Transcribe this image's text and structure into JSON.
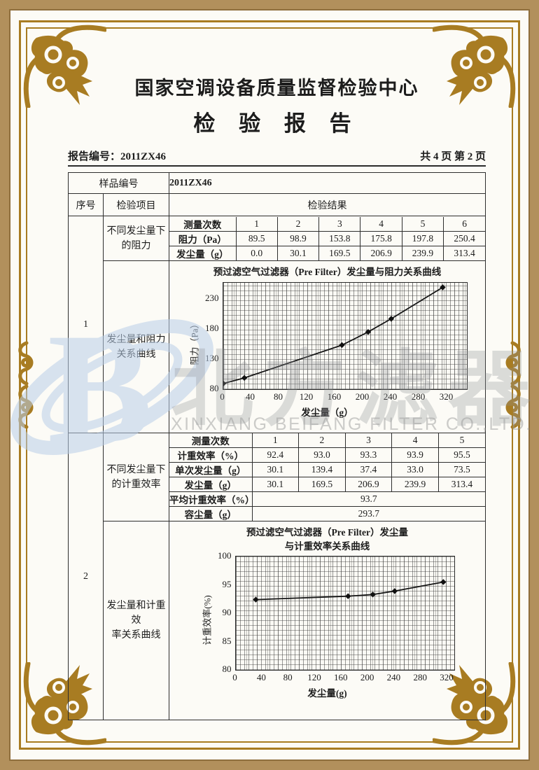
{
  "page": {
    "org_title": "国家空调设备质量监督检验中心",
    "report_title": "检 验 报 告",
    "report_no": "报告编号：2011ZX46",
    "page_info": "共 4 页 第 2 页"
  },
  "table": {
    "sample_no_label": "样品编号",
    "sample_no_value": "2011ZX46",
    "seq_header": "序号",
    "item_header": "检验项目",
    "result_header": "检验结果",
    "row1": {
      "seq": "1",
      "item_a": "不同发尘量下\n的阻力",
      "item_b": "发尘量和阻力\n关系曲线"
    },
    "row2": {
      "seq": "2",
      "item_a": "不同发尘量下\n的计重效率",
      "item_b": "发尘量和计重效\n率关系曲线"
    }
  },
  "resistance_table": {
    "count_label": "测量次数",
    "counts": [
      "1",
      "2",
      "3",
      "4",
      "5",
      "6"
    ],
    "rows": [
      {
        "label": "阻力（Pa）",
        "values": [
          "89.5",
          "98.9",
          "153.8",
          "175.8",
          "197.8",
          "250.4"
        ]
      },
      {
        "label": "发尘量（g）",
        "values": [
          "0.0",
          "30.1",
          "169.5",
          "206.9",
          "239.9",
          "313.4"
        ]
      }
    ]
  },
  "efficiency_table": {
    "count_label": "测量次数",
    "counts": [
      "1",
      "2",
      "3",
      "4",
      "5"
    ],
    "rows": [
      {
        "label": "计重效率（%）",
        "values": [
          "92.4",
          "93.0",
          "93.3",
          "93.9",
          "95.5"
        ]
      },
      {
        "label": "单次发尘量（g）",
        "values": [
          "30.1",
          "139.4",
          "37.4",
          "33.0",
          "73.5"
        ]
      },
      {
        "label": "发尘量（g）",
        "values": [
          "30.1",
          "169.5",
          "206.9",
          "239.9",
          "313.4"
        ]
      }
    ],
    "avg_label": "平均计重效率（%）",
    "avg_value": "93.7",
    "capacity_label": "容尘量（g）",
    "capacity_value": "293.7"
  },
  "chart_data": [
    {
      "type": "line",
      "title": "预过滤空气过滤器（Pre Filter）发尘量与阻力关系曲线",
      "xlabel": "发尘量（g）",
      "ylabel": "阻力（Pa）",
      "x": [
        0,
        30.1,
        169.5,
        206.9,
        239.9,
        313.4
      ],
      "y": [
        89.5,
        98.9,
        153.8,
        175.8,
        197.8,
        250.4
      ],
      "xlim": [
        0,
        348
      ],
      "ylim": [
        80,
        258
      ],
      "xticks": [
        0,
        40,
        80,
        120,
        160,
        200,
        240,
        280,
        320
      ],
      "yticks": [
        80,
        130,
        180,
        230
      ],
      "grid": true,
      "legend": "none",
      "marker": "diamond"
    },
    {
      "type": "line",
      "title": "预过滤空气过滤器（Pre Filter）发尘量\n与计重效率关系曲线",
      "xlabel": "发尘量(g)",
      "ylabel": "计重效率(%)",
      "x": [
        30.1,
        169.5,
        206.9,
        239.9,
        313.4
      ],
      "y": [
        92.4,
        93.0,
        93.3,
        93.9,
        95.5
      ],
      "xlim": [
        0,
        330
      ],
      "ylim": [
        80,
        100
      ],
      "xticks": [
        0,
        40,
        80,
        120,
        160,
        200,
        240,
        280,
        320
      ],
      "yticks": [
        80,
        85,
        90,
        95,
        100
      ],
      "grid": true,
      "legend": "none",
      "marker": "diamond"
    }
  ],
  "watermark": {
    "logo_text": "北方滤器",
    "company_text": "XINXIANG BEIFANG FILTER CO.,LTD."
  }
}
